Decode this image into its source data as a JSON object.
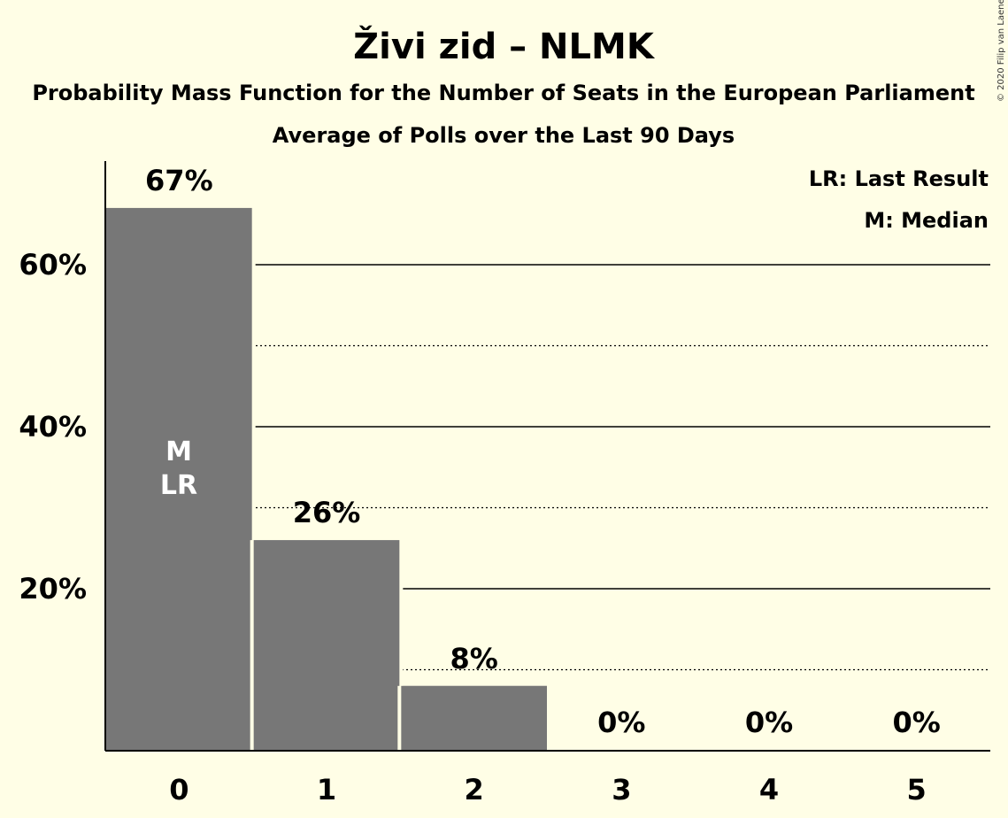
{
  "chart_data": {
    "type": "bar",
    "title": "Živi zid – NLMK",
    "subtitle": "Probability Mass Function for the Number of Seats in the European Parliament",
    "subtitle2": "Average of Polls over the Last 90 Days",
    "copyright": "© 2020 Filip van Laenen",
    "categories": [
      "0",
      "1",
      "2",
      "3",
      "4",
      "5"
    ],
    "values": [
      67,
      26,
      8,
      0,
      0,
      0
    ],
    "value_labels": [
      "67%",
      "26%",
      "8%",
      "0%",
      "0%",
      "0%"
    ],
    "ylim": [
      0,
      72.5
    ],
    "y_ticks": [
      {
        "value": 20,
        "label": "20%"
      },
      {
        "value": 40,
        "label": "40%"
      },
      {
        "value": 60,
        "label": "60%"
      }
    ],
    "minor_gridlines": [
      10,
      30,
      50
    ],
    "median_marker": {
      "category": "0",
      "text": "M"
    },
    "last_result_marker": {
      "category": "0",
      "text": "LR"
    },
    "legend": {
      "placement": "top-right",
      "last_result": "LR: Last Result",
      "median": "M: Median"
    },
    "bar_color": "#777777",
    "background_color": "#FFFEE6"
  }
}
